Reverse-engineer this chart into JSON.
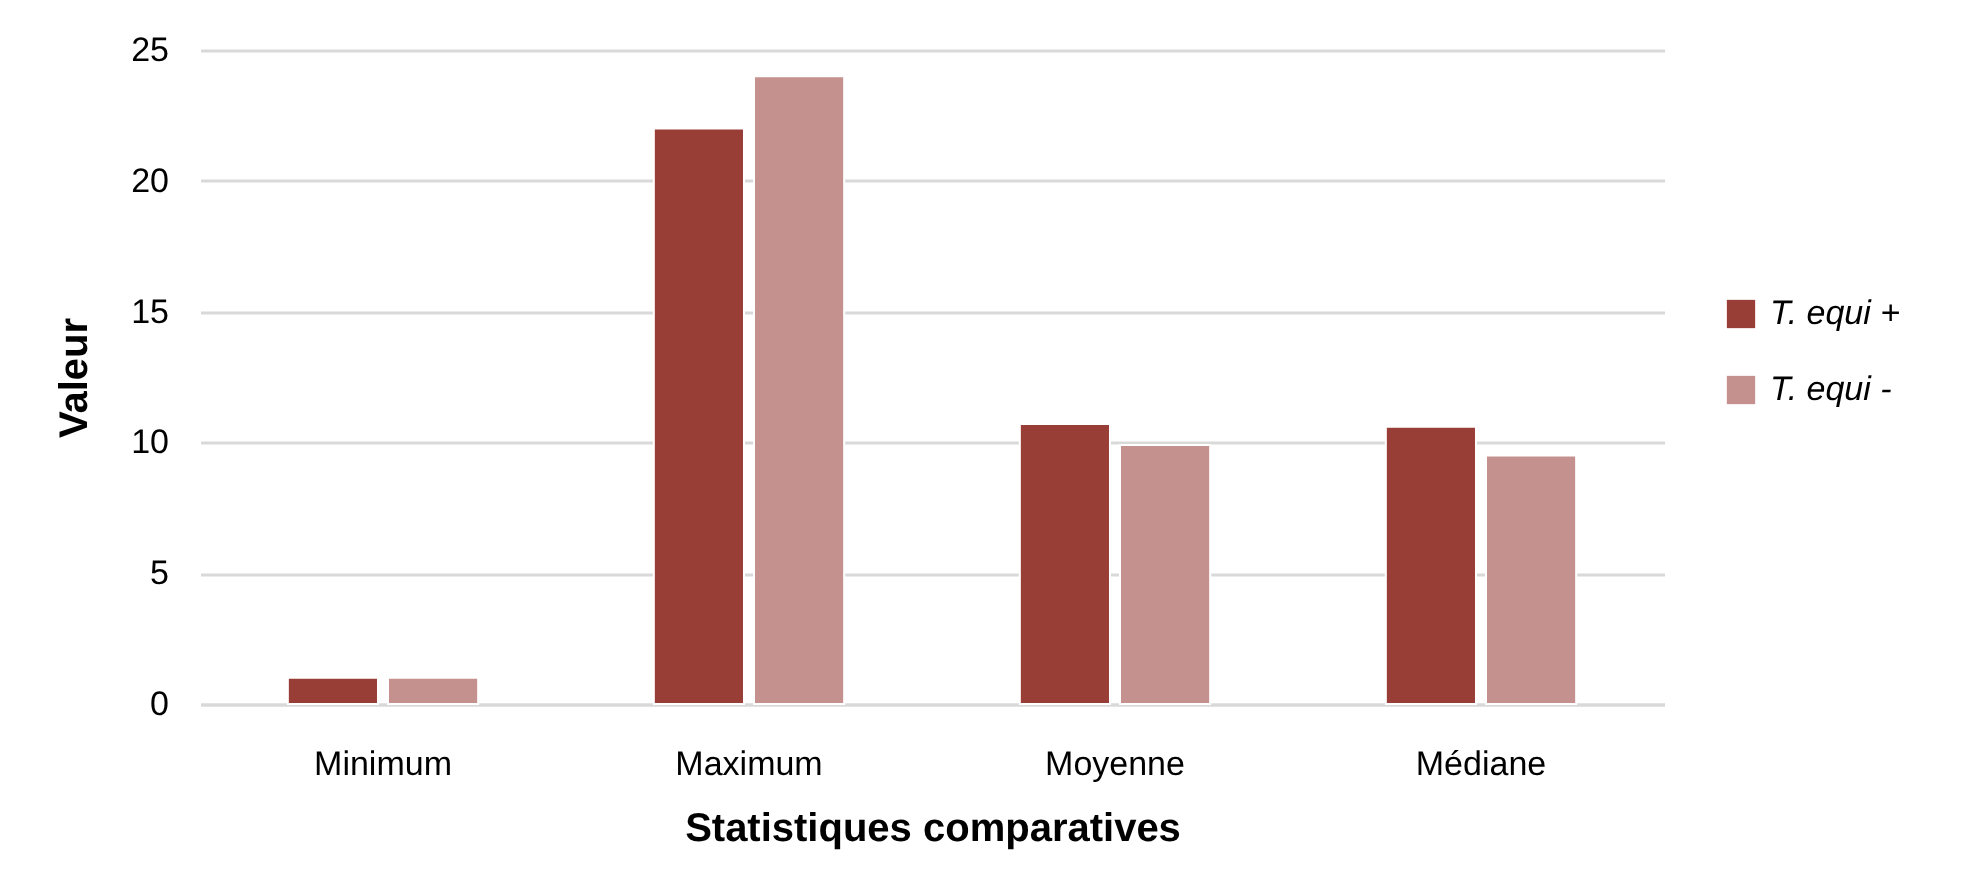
{
  "chart_data": {
    "type": "bar",
    "xlabel": "Statistiques comparatives",
    "ylabel": "Valeur",
    "categories": [
      "Minimum",
      "Maximum",
      "Moyenne",
      "Médiane"
    ],
    "series": [
      {
        "name": "T. equi +",
        "color": "#993d37",
        "values": [
          1,
          22,
          10.7,
          10.6
        ]
      },
      {
        "name": "T. equi -",
        "color": "#c4918e",
        "values": [
          1,
          24,
          9.9,
          9.5
        ]
      }
    ],
    "ylim": [
      0,
      25
    ],
    "yticks": [
      0,
      5,
      10,
      15,
      20,
      25
    ],
    "grid": "y",
    "legend": "right"
  }
}
